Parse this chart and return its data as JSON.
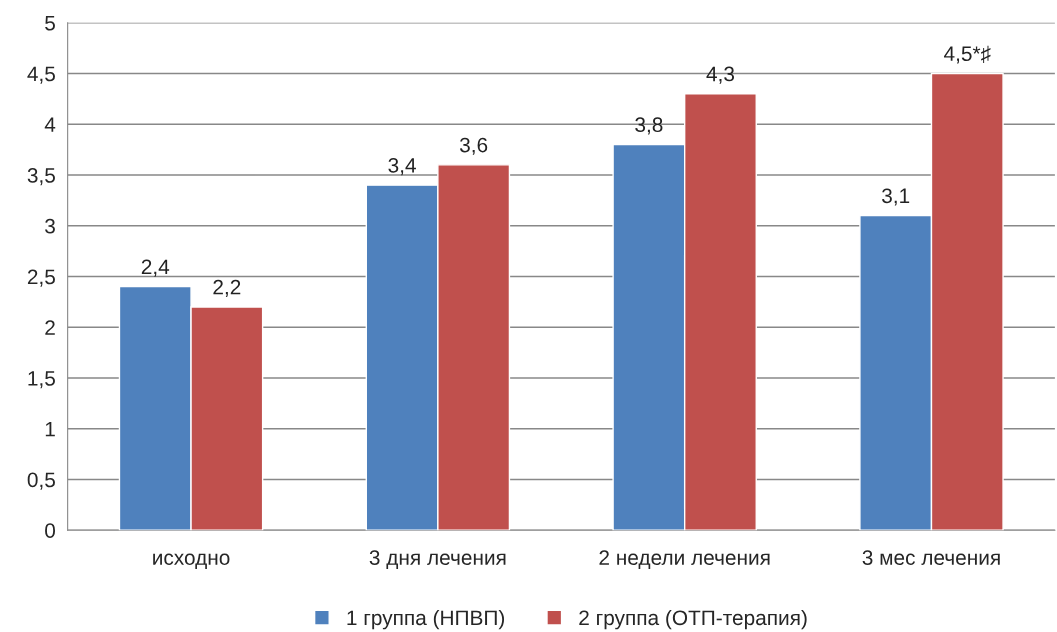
{
  "chart_data": {
    "type": "bar",
    "categories": [
      "исходно",
      "3 дня лечения",
      "2 недели лечения",
      "3 мес лечения"
    ],
    "series": [
      {
        "name": "1 группа (НПВП)",
        "color": "#4f81bd",
        "values": [
          2.4,
          3.4,
          3.8,
          3.1
        ],
        "value_labels": [
          "2,4",
          "3,4",
          "3,8",
          "3,1"
        ]
      },
      {
        "name": "2 группа (ОТП-терапия)",
        "color": "#c0504d",
        "values": [
          2.2,
          3.6,
          4.3,
          4.5
        ],
        "value_labels": [
          "2,2",
          "3,6",
          "4,3",
          "4,5*♯"
        ]
      }
    ],
    "ylim": [
      0,
      5
    ],
    "yticks": [
      0,
      {
        "value": 0.5,
        "label": "0,5"
      },
      1,
      {
        "value": 1.5,
        "label": "1,5"
      },
      2,
      {
        "value": 2.5,
        "label": "2,5"
      },
      3,
      {
        "value": 3.5,
        "label": "3,5"
      },
      4,
      {
        "value": 4.5,
        "label": "4,5"
      },
      5
    ],
    "grid": "y",
    "legend": "bottom"
  }
}
